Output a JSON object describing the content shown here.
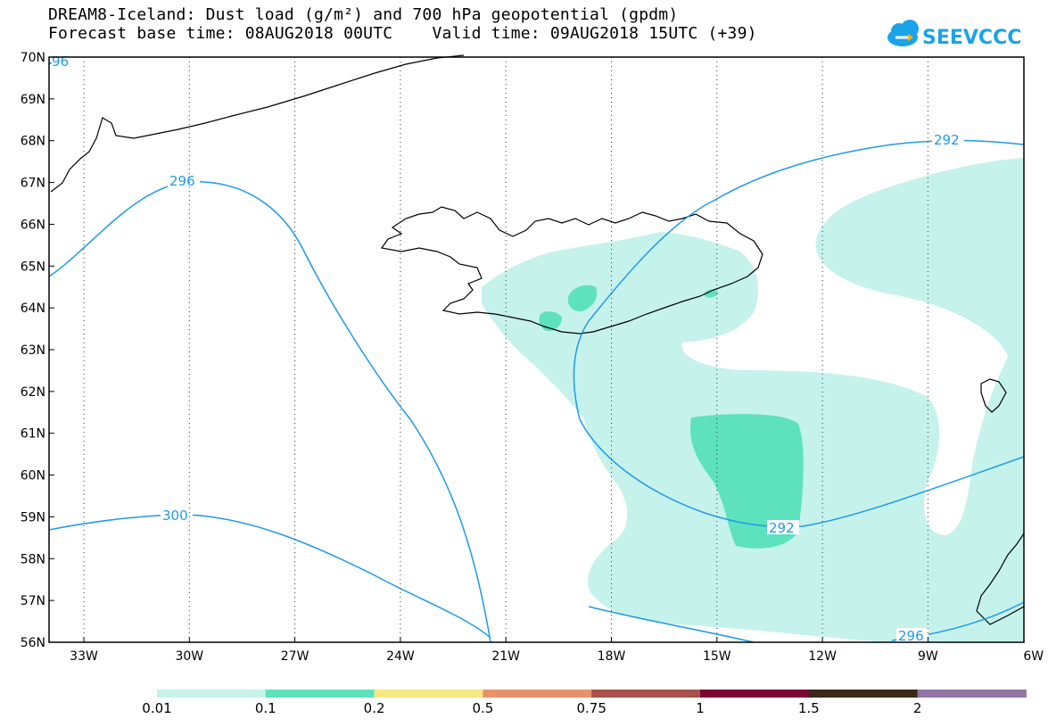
{
  "header": {
    "title_line1": "DREAM8-Iceland: Dust load (g/m²) and 700 hPa geopotential (gpdm)",
    "title_line2": "Forecast base time: 08AUG2018 00UTC    Valid time: 09AUG2018 15UTC (+39)"
  },
  "logo": {
    "text": "SEEVCCC",
    "color": "#1aa3e8"
  },
  "map": {
    "lat_labels": [
      "70N",
      "69N",
      "68N",
      "67N",
      "66N",
      "65N",
      "64N",
      "63N",
      "62N",
      "61N",
      "60N",
      "59N",
      "58N",
      "57N",
      "56N"
    ],
    "lon_labels": [
      "33W",
      "30W",
      "27W",
      "24W",
      "21W",
      "18W",
      "15W",
      "12W",
      "9W",
      "6W"
    ],
    "contour_color": "#1e9be8",
    "contour_labels": [
      "96",
      "296",
      "300",
      "292",
      "292",
      "296"
    ]
  },
  "colorbar": {
    "labels": [
      "0.01",
      "0.1",
      "0.2",
      "0.5",
      "0.75",
      "1",
      "1.5",
      "2"
    ],
    "colors": [
      "#c6f2ec",
      "#5de2bd",
      "#f7e883",
      "#e8926a",
      "#a7514d",
      "#7a0732",
      "#3a2a17",
      "#9474a4"
    ]
  }
}
